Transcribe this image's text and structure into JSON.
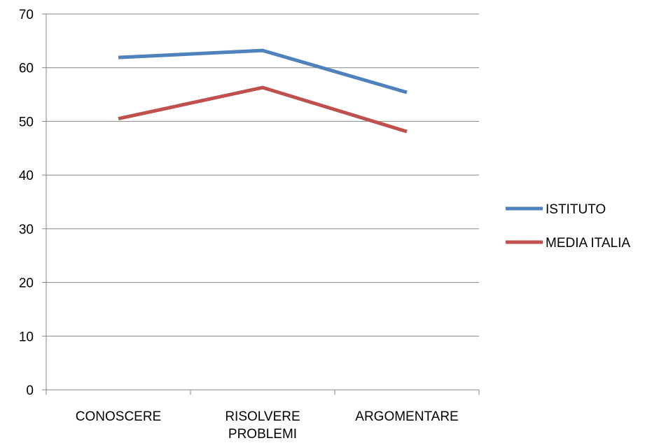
{
  "chart_data": {
    "type": "line",
    "title": "",
    "xlabel": "",
    "ylabel": "",
    "categories": [
      [
        "CONOSCERE"
      ],
      [
        "RISOLVERE",
        "PROBLEMI"
      ],
      [
        "ARGOMENTARE"
      ]
    ],
    "series": [
      {
        "name": "ISTITUTO",
        "values": [
          61.9,
          63.2,
          55.4
        ],
        "color": "#4F81BD"
      },
      {
        "name": "MEDIA ITALIA",
        "values": [
          50.5,
          56.3,
          48.1
        ],
        "color": "#C0504D"
      }
    ],
    "ylim": [
      0,
      70
    ],
    "yticks": [
      0,
      10,
      20,
      30,
      40,
      50,
      60,
      70
    ],
    "grid": true,
    "legend": "right"
  }
}
